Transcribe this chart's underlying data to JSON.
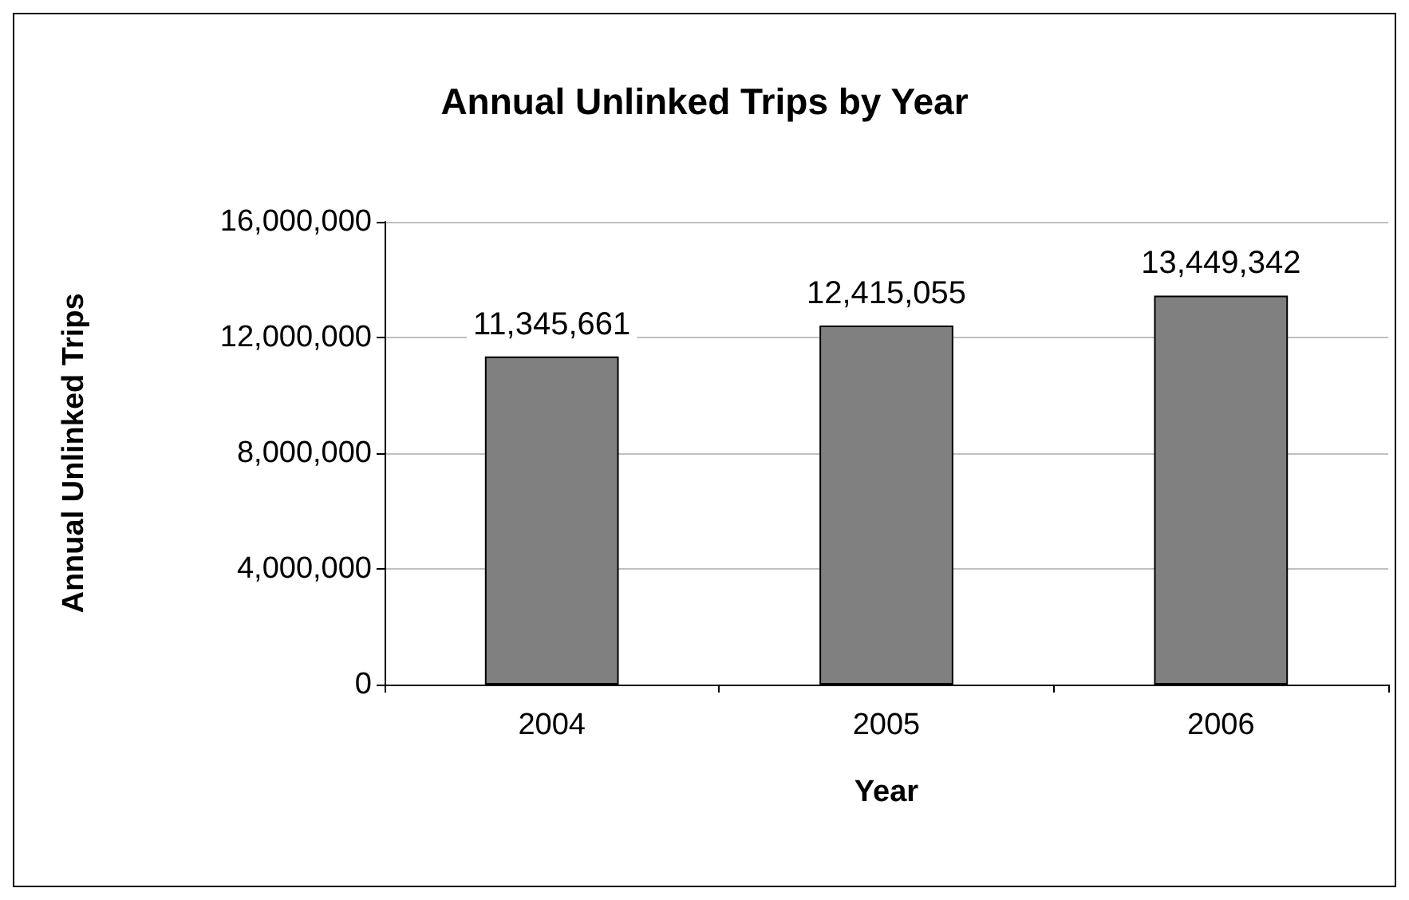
{
  "chart_data": {
    "type": "bar",
    "title": "Annual Unlinked Trips by Year",
    "xlabel": "Year",
    "ylabel": "Annual Unlinked Trips",
    "categories": [
      "2004",
      "2005",
      "2006"
    ],
    "values": [
      11345661,
      12415055,
      13449342
    ],
    "color": "#808080",
    "value_labels": [
      "11,345,661",
      "12,415,055",
      "13,449,342"
    ],
    "ylim": [
      0,
      16000000
    ],
    "yticks": [
      0,
      {
        "value": 4000000,
        "label": "4,000,000"
      },
      {
        "value": 8000000,
        "label": "8,000,000"
      },
      {
        "value": 12000000,
        "label": "12,000,000"
      },
      {
        "value": 16000000,
        "label": "16,000,000"
      }
    ],
    "grid": "y"
  }
}
